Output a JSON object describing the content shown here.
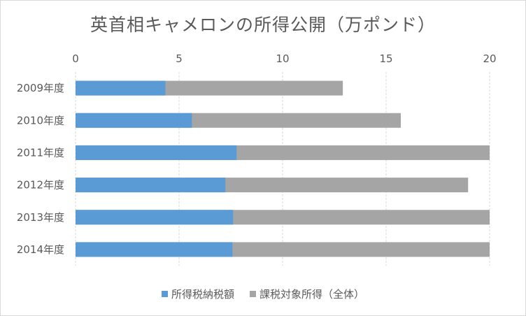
{
  "chart_data": {
    "type": "bar",
    "orientation": "horizontal",
    "title": "英首相キャメロンの所得公開（万ポンド）",
    "categories": [
      "2009年度",
      "2010年度",
      "2011年度",
      "2012年度",
      "2013年度",
      "2014年度"
    ],
    "series": [
      {
        "name": "所得税納税額",
        "color": "#5b9bd5",
        "values": [
          4.34,
          5.62,
          7.78,
          7.24,
          7.61,
          7.58
        ]
      },
      {
        "name": "課税対象所得（全体）",
        "color": "#a5a5a5",
        "values": [
          12.91,
          15.71,
          20.0,
          18.96,
          20.0,
          20.0
        ]
      }
    ],
    "overlap": true,
    "xlim": [
      0,
      20
    ],
    "xticks": [
      "0",
      "5",
      "10",
      "15",
      "20"
    ],
    "axis_position": "top",
    "grid": true,
    "legend": "bottom"
  }
}
